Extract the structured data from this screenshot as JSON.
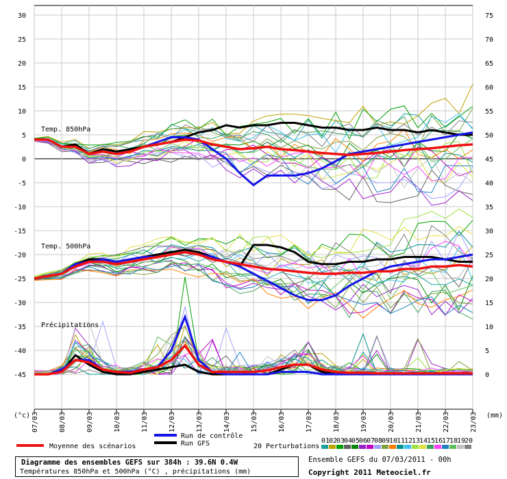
{
  "chart_data": {
    "type": "line",
    "x_tick_labels": [
      "07/03",
      "08/03",
      "09/03",
      "10/03",
      "11/03",
      "12/03",
      "13/03",
      "14/03",
      "15/03",
      "16/03",
      "17/03",
      "18/03",
      "19/03",
      "20/03",
      "21/03",
      "22/03",
      "23/03"
    ],
    "left_axis": {
      "unit_label": "(°c)",
      "ylim": [
        -50,
        32
      ],
      "ticks": [
        30,
        25,
        20,
        15,
        10,
        5,
        0,
        -5,
        -10,
        -15,
        -20,
        -25,
        -30,
        -35,
        -40,
        -45
      ]
    },
    "right_axis": {
      "unit_label": "(mm)",
      "ylim": [
        -5,
        77
      ],
      "ticks": [
        75,
        70,
        65,
        60,
        55,
        50,
        45,
        40,
        35,
        30,
        25,
        20,
        15,
        10,
        5,
        0
      ]
    },
    "panels": [
      {
        "label": "Temp. 850hPa",
        "x": [
          0,
          0.5,
          1,
          1.5,
          2,
          2.5,
          3,
          3.5,
          4,
          4.5,
          5,
          5.5,
          6,
          6.5,
          7,
          7.5,
          8,
          8.5,
          9,
          9.5,
          10,
          10.5,
          11,
          11.5,
          12,
          12.5,
          13,
          13.5,
          14,
          14.5,
          15,
          15.5,
          16
        ],
        "gfs": [
          4,
          4,
          2.5,
          3,
          1,
          2,
          1.5,
          2,
          2.5,
          3,
          3.5,
          4.5,
          5.5,
          6,
          7,
          6.5,
          7,
          7,
          7.5,
          7.5,
          7,
          6.5,
          6.5,
          6,
          6,
          6.5,
          6,
          6,
          5.5,
          6,
          5.5,
          5,
          5
        ],
        "control": [
          4,
          4,
          2.5,
          2.5,
          1,
          1.5,
          1,
          1.5,
          2.5,
          3.5,
          4.5,
          4.5,
          4,
          2,
          0,
          -3,
          -5.5,
          -3.5,
          -3.5,
          -3.5,
          -3,
          -2,
          -0.5,
          1,
          1.5,
          2,
          2.5,
          3,
          3.5,
          4,
          4.5,
          5,
          5.5
        ],
        "mean": [
          4,
          4,
          2.5,
          2.5,
          1,
          1.5,
          1,
          1.5,
          2.5,
          3,
          3.5,
          4,
          3.8,
          3,
          2.5,
          2,
          2.2,
          2.5,
          2,
          1.8,
          1.5,
          1.2,
          1,
          0.8,
          1,
          1.2,
          1.5,
          1.8,
          2,
          2.2,
          2.5,
          2.8,
          3
        ]
      },
      {
        "label": "Temp. 500hPa",
        "x": [
          0,
          0.5,
          1,
          1.5,
          2,
          2.5,
          3,
          3.5,
          4,
          4.5,
          5,
          5.5,
          6,
          6.5,
          7,
          7.5,
          8,
          8.5,
          9,
          9.5,
          10,
          10.5,
          11,
          11.5,
          12,
          12.5,
          13,
          13.5,
          14,
          14.5,
          15,
          15.5,
          16
        ],
        "gfs": [
          -25,
          -24.5,
          -24,
          -22,
          -21,
          -21,
          -21.5,
          -21,
          -20.5,
          -20,
          -19.5,
          -19,
          -19.5,
          -20.5,
          -21.5,
          -22.5,
          -18,
          -18,
          -18.5,
          -19.5,
          -21.5,
          -22,
          -22,
          -21.5,
          -21.5,
          -21,
          -21,
          -20.5,
          -20.5,
          -20.5,
          -21,
          -21.5,
          -21.5
        ],
        "control": [
          -25,
          -24.5,
          -24,
          -22,
          -21.5,
          -21,
          -21.5,
          -21,
          -20.5,
          -20.5,
          -20,
          -19.5,
          -20,
          -20.5,
          -21.5,
          -22.5,
          -24,
          -25.5,
          -27,
          -28.5,
          -29.5,
          -29.5,
          -28.5,
          -26.5,
          -25,
          -23.5,
          -22.5,
          -22,
          -21.5,
          -21,
          -21,
          -20.5,
          -20
        ],
        "mean": [
          -25,
          -24.5,
          -24,
          -22.5,
          -21.5,
          -21.5,
          -22,
          -21.5,
          -21,
          -20.5,
          -20,
          -19.5,
          -20,
          -21,
          -21.5,
          -22,
          -22.5,
          -23,
          -23.2,
          -23.5,
          -23.8,
          -24,
          -24,
          -23.8,
          -23.8,
          -23.5,
          -23.5,
          -23,
          -23,
          -22.5,
          -22.5,
          -22.2,
          -22.5
        ]
      },
      {
        "label": "Précipitations",
        "x": [
          0,
          0.5,
          1,
          1.5,
          2,
          2.5,
          3,
          3.5,
          4,
          4.5,
          5,
          5.5,
          6,
          6.5,
          7,
          7.5,
          8,
          8.5,
          9,
          9.5,
          10,
          10.5,
          11,
          11.5,
          12,
          12.5,
          13,
          13.5,
          14,
          14.5,
          15,
          15.5,
          16
        ],
        "gfs": [
          0,
          0,
          0.5,
          4,
          2,
          0.5,
          0,
          0,
          0.5,
          1,
          1.5,
          2,
          0.5,
          0,
          0,
          0,
          0,
          0,
          1,
          2,
          2,
          0.5,
          0,
          0,
          0,
          0,
          0,
          0,
          0,
          0,
          0,
          0,
          0
        ],
        "control": [
          0,
          0,
          1,
          3,
          3,
          1,
          0.5,
          0.5,
          1,
          1.5,
          5,
          12,
          3,
          0.5,
          0,
          0,
          0,
          0,
          0.5,
          0.5,
          0.5,
          0,
          0,
          0,
          0,
          0,
          0,
          0,
          0,
          0,
          0,
          0,
          0
        ],
        "mean": [
          0,
          0,
          0.5,
          3,
          2.5,
          1,
          0.5,
          0.3,
          1,
          1.5,
          3,
          6,
          2,
          0.5,
          0.5,
          0.5,
          0.5,
          0.8,
          1.5,
          2,
          2,
          1,
          0.5,
          0.3,
          0.3,
          0.2,
          0.2,
          0.2,
          0.2,
          0.2,
          0.2,
          0.2,
          0.2
        ]
      }
    ],
    "series_colors": {
      "gfs": "#000000",
      "control": "#1414e6",
      "mean": "#ee1111"
    },
    "perturbation_colors": [
      "#1fa0a0",
      "#c0a000",
      "#00a000",
      "#606060",
      "#008800",
      "#9a1fc8",
      "#c000c0",
      "#a0a0ff",
      "#80a040",
      "#ff8000",
      "#009090",
      "#40c0f0",
      "#a0e040",
      "#e0e040",
      "#40a060",
      "#ff40ff",
      "#2080c0",
      "#60c060",
      "#c0c0c0",
      "#808080"
    ],
    "perturbation_numbers": [
      "01",
      "02",
      "03",
      "04",
      "05",
      "06",
      "07",
      "08",
      "09",
      "10",
      "11",
      "12",
      "13",
      "14",
      "15",
      "16",
      "17",
      "18",
      "19",
      "20"
    ],
    "grid": true
  },
  "legend": {
    "mean_label": "Moyenne des scénarios",
    "control_label": "Run de contrôle",
    "gfs_label": "Run GFS",
    "perturbations_label": "20 Perturbations"
  },
  "info": {
    "title": "Diagramme des ensembles GEFS sur 384h : 39.6N 0.4W",
    "subtitle": "Températures 850hPa et 500hPa (°C) , précipitations (mm)",
    "ensemble": "Ensemble GEFS du 07/03/2011 - 00h",
    "copyright": "Copyright 2011 Meteociel.fr"
  }
}
